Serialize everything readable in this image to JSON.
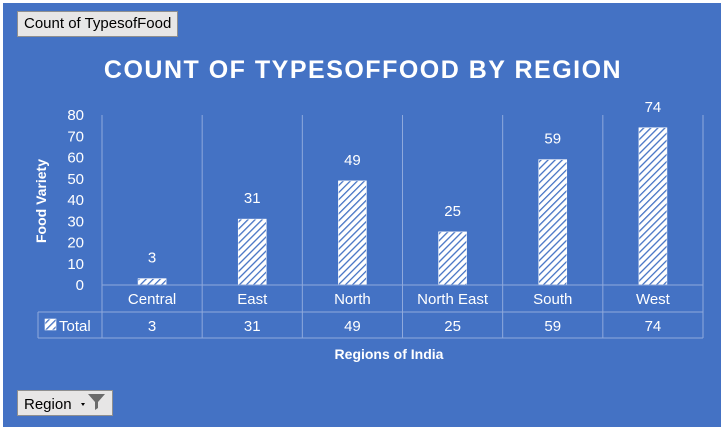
{
  "pivot": {
    "value_field": "Count of TypesofFood",
    "axis_field": "Region"
  },
  "table": {
    "row_label": "Total",
    "categories": [
      "Central",
      "East",
      "North",
      "North East",
      "South",
      "West"
    ],
    "values": [
      3,
      31,
      49,
      25,
      59,
      74
    ]
  },
  "colors": {
    "background": "#4472c4",
    "text": "#ffffff",
    "gridline": "#8fa9dc"
  },
  "chart_data": {
    "type": "bar",
    "title": "COUNT OF TYPESOFFOOD BY REGION",
    "xlabel": "Regions of India",
    "ylabel": "Food Variety",
    "categories": [
      "Central",
      "East",
      "North",
      "North East",
      "South",
      "West"
    ],
    "series": [
      {
        "name": "Total",
        "values": [
          3,
          31,
          49,
          25,
          59,
          74
        ],
        "pattern": "diagonal-hatch"
      }
    ],
    "ylim": [
      0,
      80
    ],
    "yticks": [
      0,
      10,
      20,
      30,
      40,
      50,
      60,
      70,
      80
    ],
    "data_labels": true,
    "data_table": true,
    "grid": "vertical-category-separators",
    "legend": "none"
  }
}
